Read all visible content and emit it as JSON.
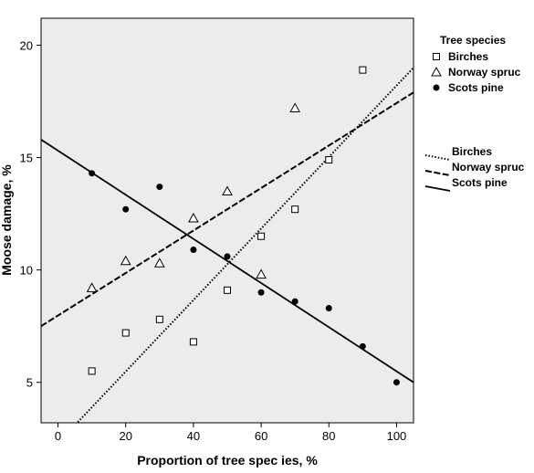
{
  "chart_data": {
    "type": "scatter",
    "xlabel": "Proportion of tree spec ies, %",
    "ylabel": "Moose damage, %",
    "xlim": [
      -5,
      105
    ],
    "ylim": [
      3.2,
      21.2
    ],
    "x_ticks": [
      0,
      20,
      40,
      60,
      80,
      100
    ],
    "y_ticks": [
      5,
      10,
      15,
      20
    ],
    "grid": false,
    "legend": {
      "placement": "right",
      "markers_title": "Tree species",
      "markers": [
        "Birches",
        "Norway spruc",
        "Scots pine"
      ],
      "lines": [
        "Birches",
        "Norway spruc",
        "Scots pine"
      ]
    },
    "series": [
      {
        "name": "Birches",
        "marker": "square",
        "points": [
          [
            10,
            5.5
          ],
          [
            20,
            7.2
          ],
          [
            30,
            7.8
          ],
          [
            40,
            6.8
          ],
          [
            50,
            9.1
          ],
          [
            60,
            11.5
          ],
          [
            70,
            12.7
          ],
          [
            80,
            14.9
          ],
          [
            90,
            18.9
          ]
        ],
        "fit": {
          "style": "dotted",
          "from": [
            0,
            2.3
          ],
          "to": [
            105,
            19.0
          ]
        }
      },
      {
        "name": "Norway spruc",
        "marker": "triangle",
        "points": [
          [
            10,
            9.2
          ],
          [
            20,
            10.4
          ],
          [
            30,
            10.3
          ],
          [
            40,
            12.3
          ],
          [
            50,
            13.5
          ],
          [
            60,
            9.8
          ],
          [
            70,
            17.2
          ]
        ],
        "fit": {
          "style": "dashed",
          "from": [
            -5,
            7.5
          ],
          "to": [
            105,
            17.9
          ]
        }
      },
      {
        "name": "Scots pine",
        "marker": "circle",
        "points": [
          [
            10,
            14.3
          ],
          [
            20,
            12.7
          ],
          [
            30,
            13.7
          ],
          [
            40,
            10.9
          ],
          [
            50,
            10.6
          ],
          [
            60,
            9.0
          ],
          [
            70,
            8.6
          ],
          [
            80,
            8.3
          ],
          [
            90,
            6.6
          ],
          [
            100,
            5.0
          ]
        ],
        "fit": {
          "style": "solid",
          "from": [
            -5,
            15.8
          ],
          "to": [
            105,
            5.0
          ]
        }
      }
    ]
  }
}
